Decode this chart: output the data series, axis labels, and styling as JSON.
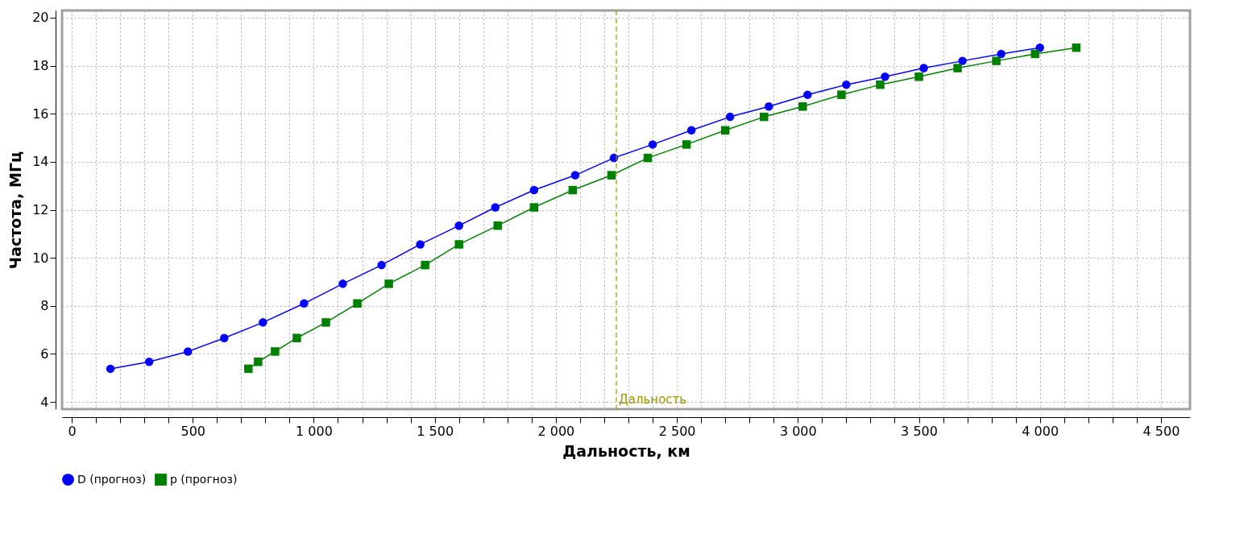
{
  "chart_data": {
    "type": "line",
    "xlabel": "Дальность, км",
    "ylabel": "Частота, МГц",
    "xlim": [
      -40,
      4620
    ],
    "ylim": [
      3.7,
      20.3
    ],
    "xticks": [
      0,
      {
        "value": 100,
        "label": null
      },
      {
        "value": 200,
        "label": null
      },
      {
        "value": 300,
        "label": null
      },
      {
        "value": 400,
        "label": null
      },
      500,
      {
        "value": 600,
        "label": null
      },
      {
        "value": 700,
        "label": null
      },
      {
        "value": 800,
        "label": null
      },
      {
        "value": 900,
        "label": null
      },
      {
        "value": 1000,
        "label": "1 000"
      },
      {
        "value": 1100,
        "label": null
      },
      {
        "value": 1200,
        "label": null
      },
      {
        "value": 1300,
        "label": null
      },
      {
        "value": 1400,
        "label": null
      },
      {
        "value": 1500,
        "label": "1 500"
      },
      {
        "value": 1600,
        "label": null
      },
      {
        "value": 1700,
        "label": null
      },
      {
        "value": 1800,
        "label": null
      },
      {
        "value": 1900,
        "label": null
      },
      {
        "value": 2000,
        "label": "2 000"
      },
      {
        "value": 2100,
        "label": null
      },
      {
        "value": 2200,
        "label": null
      },
      {
        "value": 2300,
        "label": null
      },
      {
        "value": 2400,
        "label": null
      },
      {
        "value": 2500,
        "label": "2 500"
      },
      {
        "value": 2600,
        "label": null
      },
      {
        "value": 2700,
        "label": null
      },
      {
        "value": 2800,
        "label": null
      },
      {
        "value": 2900,
        "label": null
      },
      {
        "value": 3000,
        "label": "3 000"
      },
      {
        "value": 3100,
        "label": null
      },
      {
        "value": 3200,
        "label": null
      },
      {
        "value": 3300,
        "label": null
      },
      {
        "value": 3400,
        "label": null
      },
      {
        "value": 3500,
        "label": "3 500"
      },
      {
        "value": 3600,
        "label": null
      },
      {
        "value": 3700,
        "label": null
      },
      {
        "value": 3800,
        "label": null
      },
      {
        "value": 3900,
        "label": null
      },
      {
        "value": 4000,
        "label": "4 000"
      },
      {
        "value": 4100,
        "label": null
      },
      {
        "value": 4200,
        "label": null
      },
      {
        "value": 4300,
        "label": null
      },
      {
        "value": 4400,
        "label": null
      },
      {
        "value": 4500,
        "label": "4 500"
      }
    ],
    "yticks": [
      4,
      6,
      8,
      10,
      12,
      14,
      16,
      18,
      20
    ],
    "grid": true,
    "legend": "bottom",
    "line_style": "solid",
    "series": [
      {
        "name": "D (прогноз)",
        "color": "#0000ff",
        "marker": "circle",
        "x": [
          160,
          320,
          480,
          630,
          790,
          960,
          1120,
          1280,
          1440,
          1600,
          1750,
          1910,
          2080,
          2240,
          2400,
          2560,
          2720,
          2880,
          3040,
          3200,
          3360,
          3520,
          3680,
          3840,
          4000
        ],
        "values": [
          5.38,
          5.67,
          6.1,
          6.66,
          7.31,
          8.1,
          8.92,
          9.7,
          10.56,
          11.34,
          12.1,
          12.82,
          13.44,
          14.16,
          14.72,
          15.31,
          15.87,
          16.3,
          16.79,
          17.21,
          17.54,
          17.9,
          18.2,
          18.49,
          18.75
        ]
      },
      {
        "name": "p (прогноз)",
        "color": "#008000",
        "marker": "square",
        "x": [
          730,
          770,
          840,
          930,
          1050,
          1180,
          1310,
          1460,
          1600,
          1760,
          1910,
          2070,
          2230,
          2380,
          2540,
          2700,
          2860,
          3020,
          3180,
          3340,
          3500,
          3660,
          3820,
          3980,
          4150
        ],
        "values": [
          5.38,
          5.67,
          6.1,
          6.66,
          7.31,
          8.1,
          8.92,
          9.7,
          10.56,
          11.34,
          12.1,
          12.82,
          13.44,
          14.16,
          14.72,
          15.31,
          15.87,
          16.3,
          16.79,
          17.21,
          17.54,
          17.9,
          18.2,
          18.49,
          18.75
        ]
      }
    ],
    "ref_lines": [
      {
        "axis": "x",
        "value": 2250,
        "label": "Дальность",
        "color": "#999900",
        "line_style": "dashed"
      }
    ]
  }
}
